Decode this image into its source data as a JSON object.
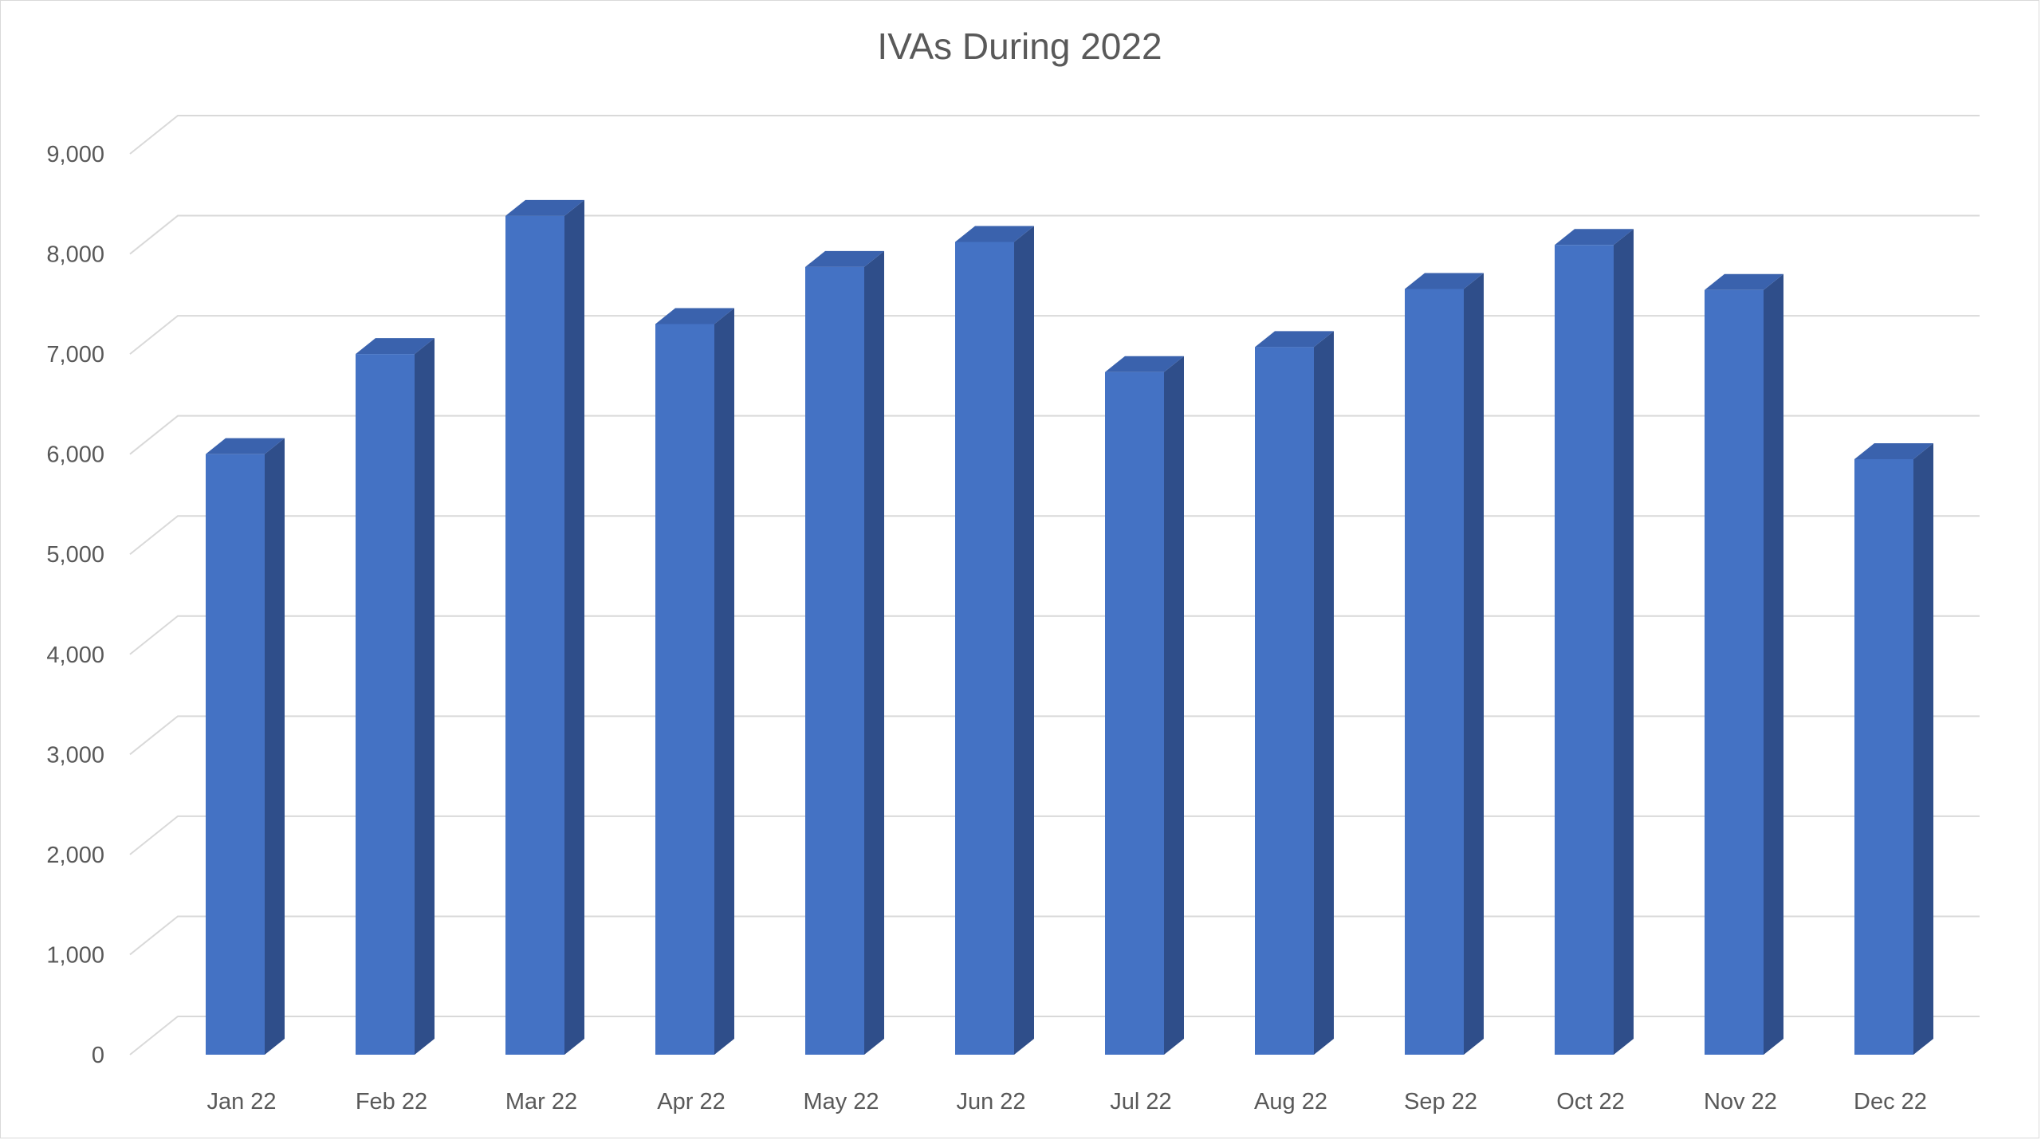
{
  "chart_data": {
    "type": "bar",
    "style": "3d-column",
    "title": "IVAs During 2022",
    "xlabel": "",
    "ylabel": "",
    "categories": [
      "Jan 22",
      "Feb 22",
      "Mar 22",
      "Apr 22",
      "May 22",
      "Jun 22",
      "Jul 22",
      "Aug 22",
      "Sep 22",
      "Oct 22",
      "Nov 22",
      "Dec 22"
    ],
    "values": [
      6000,
      7000,
      8380,
      7300,
      7870,
      8120,
      6820,
      7070,
      7650,
      8090,
      7640,
      5950
    ],
    "ylim": [
      0,
      9000
    ],
    "yticks": [
      "0",
      "1,000",
      "2,000",
      "3,000",
      "4,000",
      "5,000",
      "6,000",
      "7,000",
      "8,000",
      "9,000"
    ],
    "grid": true,
    "legend": "none",
    "colors": {
      "bar_front": "#4472c4",
      "bar_side": "#2f4e8a",
      "bar_top": "#3a62ad",
      "gridline": "#d9d9d9",
      "text": "#595959"
    }
  }
}
